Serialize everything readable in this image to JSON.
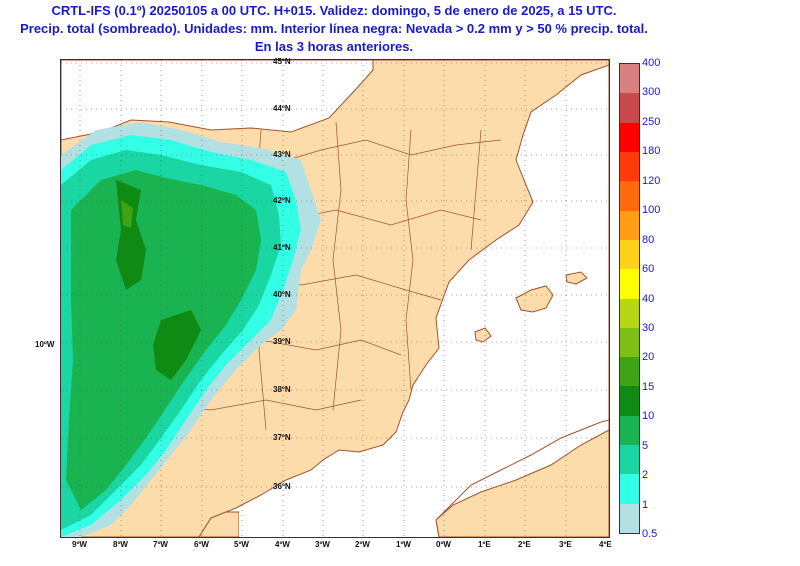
{
  "header": {
    "line1": "CRTL-IFS (0.1º) 20250105 a 00 UTC. H+015. Validez: domingo, 5 de enero de 2025, a 15 UTC.",
    "line2": "Precip. total (sombreado). Unidades: mm. Interior línea negra: Nevada > 0.2 mm y > 50 % precip. total.",
    "line3": "En las 3 horas anteriores."
  },
  "map": {
    "lat_labels": [
      "45ºN",
      "44ºN",
      "43ºN",
      "42ºN",
      "41ºN",
      "40ºN",
      "39ºN",
      "38ºN",
      "37ºN",
      "36ºN"
    ],
    "lon_labels": [
      "9ºW",
      "8ºW",
      "7ºW",
      "6ºW",
      "5ºW",
      "4ºW",
      "3ºW",
      "2ºW",
      "1ºW",
      "0ºW",
      "1ºE",
      "2ºE",
      "3ºE",
      "4ºE"
    ],
    "side_label": "10ºW",
    "colors": {
      "land": "#fddcab",
      "sea": "#ffffff",
      "border": "#a0522d"
    }
  },
  "colorbar": {
    "levels": [
      "0.5",
      "1",
      "2",
      "5",
      "10",
      "15",
      "20",
      "30",
      "40",
      "60",
      "80",
      "100",
      "120",
      "180",
      "250",
      "300",
      "400"
    ],
    "colors": [
      "#b3e0e3",
      "#33ffe6",
      "#1ad6a3",
      "#19b451",
      "#0f8a12",
      "#3fa316",
      "#7fbe14",
      "#b7d616",
      "#ffff00",
      "#ffd21a",
      "#ff9d14",
      "#ff6a0e",
      "#ff3a0a",
      "#ff0000",
      "#c94a4a",
      "#d98080",
      "#e8b8b8"
    ]
  }
}
